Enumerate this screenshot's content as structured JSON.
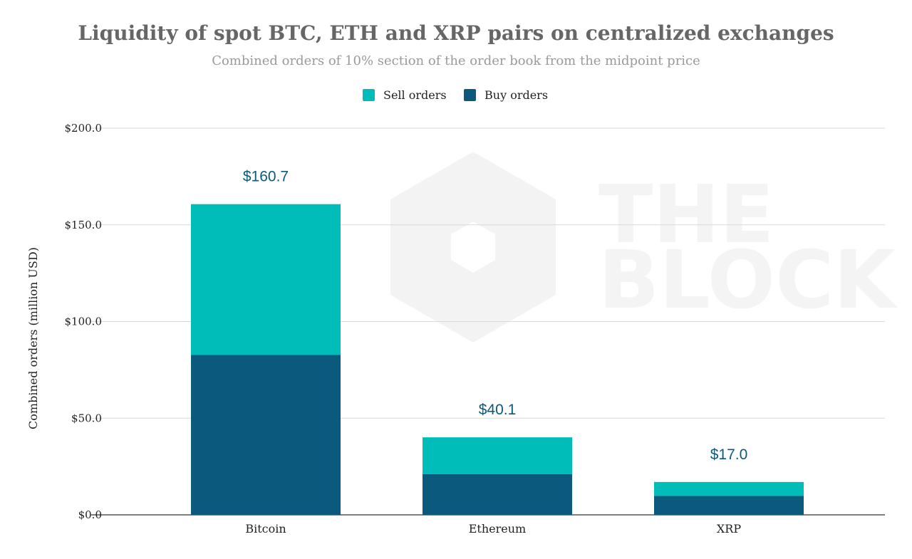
{
  "colors": {
    "sell": "#00BDB9",
    "buy": "#0B5A7D",
    "total_label": "#0B5A7D",
    "grid": "#d9d9d9",
    "baseline": "#333333",
    "watermark": "#f3f3f3"
  },
  "watermark": {
    "line1": "THE",
    "line2": "BLOCK"
  },
  "chart_data": {
    "type": "bar",
    "stacked": true,
    "title": "Liquidity of spot BTC, ETH and XRP pairs on centralized exchanges",
    "subtitle": "Combined orders of 10% section of the order book from the midpoint price",
    "xlabel": "",
    "ylabel": "Combined orders (million USD)",
    "ylim": [
      0,
      200
    ],
    "yticks": [
      0,
      50,
      100,
      150,
      200
    ],
    "ytick_labels": [
      "$0.0",
      "$50.0",
      "$100.0",
      "$150.0",
      "$200.0"
    ],
    "grid": true,
    "legend_position": "top-center",
    "categories": [
      "Bitcoin",
      "Ethereum",
      "XRP"
    ],
    "series": [
      {
        "name": "Buy orders",
        "values": [
          82.7,
          21.1,
          9.8
        ]
      },
      {
        "name": "Sell orders",
        "values": [
          78.0,
          19.0,
          7.2
        ]
      }
    ],
    "legend_order": [
      "Sell orders",
      "Buy orders"
    ],
    "totals": [
      160.7,
      40.1,
      17.0
    ],
    "total_labels": [
      "$160.7",
      "$40.1",
      "$17.0"
    ]
  }
}
